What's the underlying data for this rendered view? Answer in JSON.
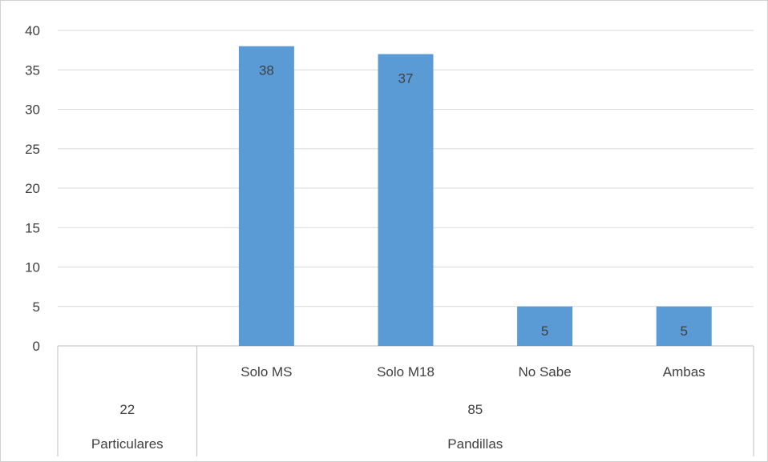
{
  "chart_data": {
    "type": "bar",
    "categories": [
      "",
      "Solo MS",
      "Solo M18",
      "No Sabe",
      "Ambas"
    ],
    "values": [
      null,
      38,
      37,
      5,
      5
    ],
    "ylim": [
      0,
      40
    ],
    "yticks": [
      0,
      5,
      10,
      15,
      20,
      25,
      30,
      35,
      40
    ],
    "grid": true,
    "bar_color": "#5B9BD5",
    "data_labels": [
      "",
      "38",
      "37",
      "5",
      "5"
    ],
    "groups": [
      {
        "count": "22",
        "label": "Particulares",
        "span": [
          0,
          0
        ]
      },
      {
        "count": "85",
        "label": "Pandillas",
        "span": [
          1,
          4
        ]
      }
    ]
  }
}
